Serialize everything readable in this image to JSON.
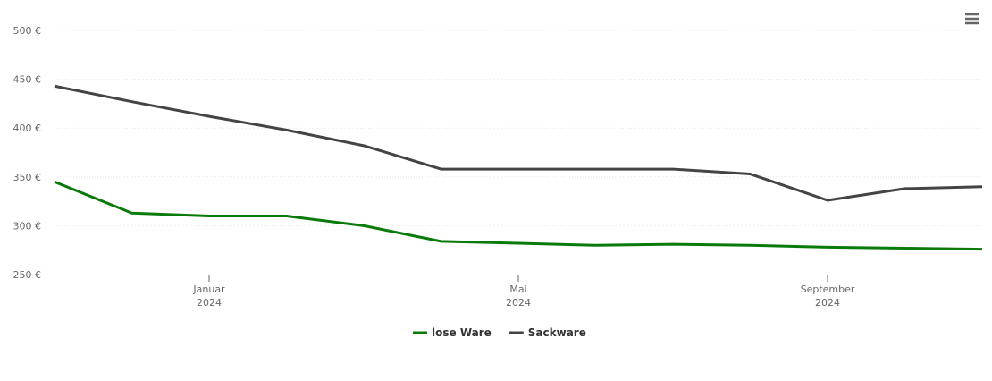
{
  "chart_data": {
    "type": "line",
    "x": [
      "2023-11",
      "2023-12",
      "2024-01",
      "2024-02",
      "2024-03",
      "2024-04",
      "2024-05",
      "2024-06",
      "2024-07",
      "2024-08",
      "2024-09",
      "2024-10",
      "2024-11"
    ],
    "xlim": [
      "2023-11",
      "2024-11"
    ],
    "xticks": [
      {
        "value": "2024-01",
        "label": [
          "Januar",
          "2024"
        ]
      },
      {
        "value": "2024-05",
        "label": [
          "Mai",
          "2024"
        ]
      },
      {
        "value": "2024-09",
        "label": [
          "September",
          "2024"
        ]
      }
    ],
    "ylim": [
      250,
      500
    ],
    "yticks": [
      {
        "value": 250,
        "label": "250 €"
      },
      {
        "value": 300,
        "label": "300 €"
      },
      {
        "value": 350,
        "label": "350 €"
      },
      {
        "value": 400,
        "label": "400 €"
      },
      {
        "value": 450,
        "label": "450 €"
      },
      {
        "value": 500,
        "label": "500 €"
      }
    ],
    "grid": true,
    "legend": "bottom",
    "series": [
      {
        "name": "lose Ware",
        "color": "#0a7a0a",
        "values": [
          345,
          313,
          310,
          310,
          300,
          284,
          282,
          280,
          281,
          280,
          278,
          277,
          276
        ]
      },
      {
        "name": "Sackware",
        "color": "#444444",
        "values": [
          443,
          427,
          412,
          398,
          382,
          358,
          358,
          358,
          358,
          353,
          326,
          338,
          340
        ]
      }
    ]
  }
}
